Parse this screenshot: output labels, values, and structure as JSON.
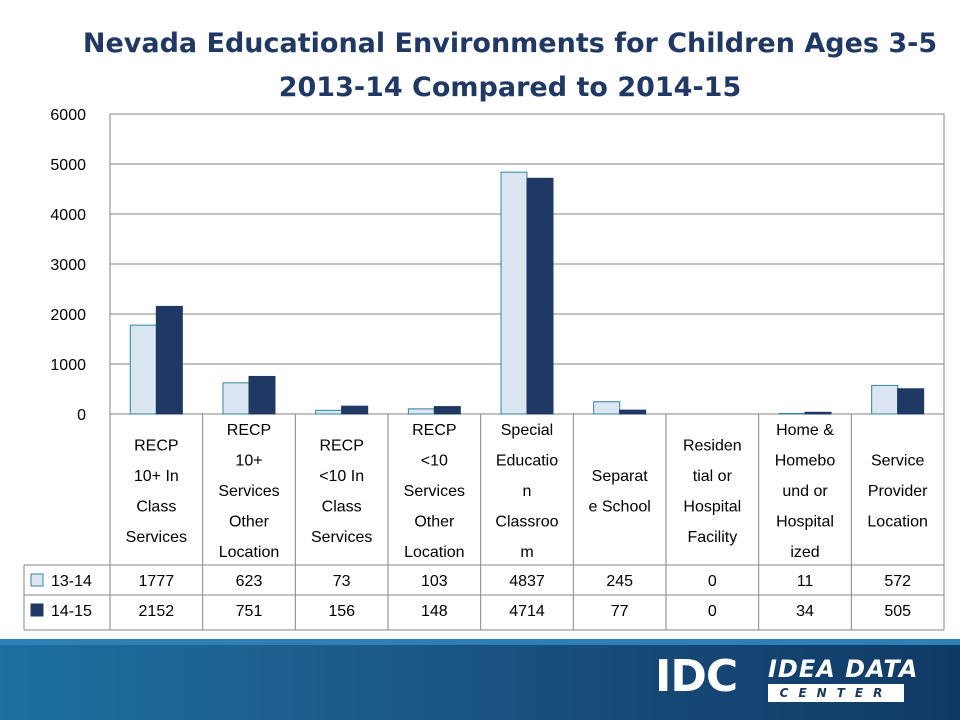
{
  "slide": {
    "title_line1": "Nevada Educational Environments for Children Ages 3-5",
    "title_line2": "2013-14 Compared to 2014-15"
  },
  "logo": {
    "idc": "IDC",
    "idea_data": "IDEA DATA",
    "center": "CENTER"
  },
  "colors": {
    "series1_fill": "#dce6f2",
    "series1_stroke": "#31849b",
    "series2_fill": "#1f3864",
    "axis": "#868686",
    "title": "#1f3864"
  },
  "chart_data": {
    "type": "bar",
    "title": "Nevada Educational Environments for Children Ages 3-5 2013-14 Compared to 2014-15",
    "ylim": [
      0,
      6000
    ],
    "yticks": [
      "0",
      "1000",
      "2000",
      "3000",
      "4000",
      "5000",
      "6000"
    ],
    "grid": true,
    "legend": "data-table",
    "categories": [
      [
        "RECP",
        "10+ In",
        "Class",
        "Services"
      ],
      [
        "RECP",
        "10+",
        "Services",
        "Other",
        "Location"
      ],
      [
        "RECP",
        "<10 In",
        "Class",
        "Services"
      ],
      [
        "RECP",
        "<10",
        "Services",
        "Other",
        "Location"
      ],
      [
        "Special",
        "Educatio",
        "n",
        "Classroo",
        "m"
      ],
      [
        "Separat",
        "e School"
      ],
      [
        "Residen",
        "tial or",
        "Hospital",
        "Facility"
      ],
      [
        "Home &",
        "Homebo",
        "und or",
        "Hospital",
        "ized"
      ],
      [
        "Service",
        "Provider",
        "Location"
      ]
    ],
    "series": [
      {
        "name": "13-14",
        "values": [
          1777,
          623,
          73,
          103,
          4837,
          245,
          0,
          11,
          572
        ]
      },
      {
        "name": "14-15",
        "values": [
          2152,
          751,
          156,
          148,
          4714,
          77,
          0,
          34,
          505
        ]
      }
    ]
  }
}
